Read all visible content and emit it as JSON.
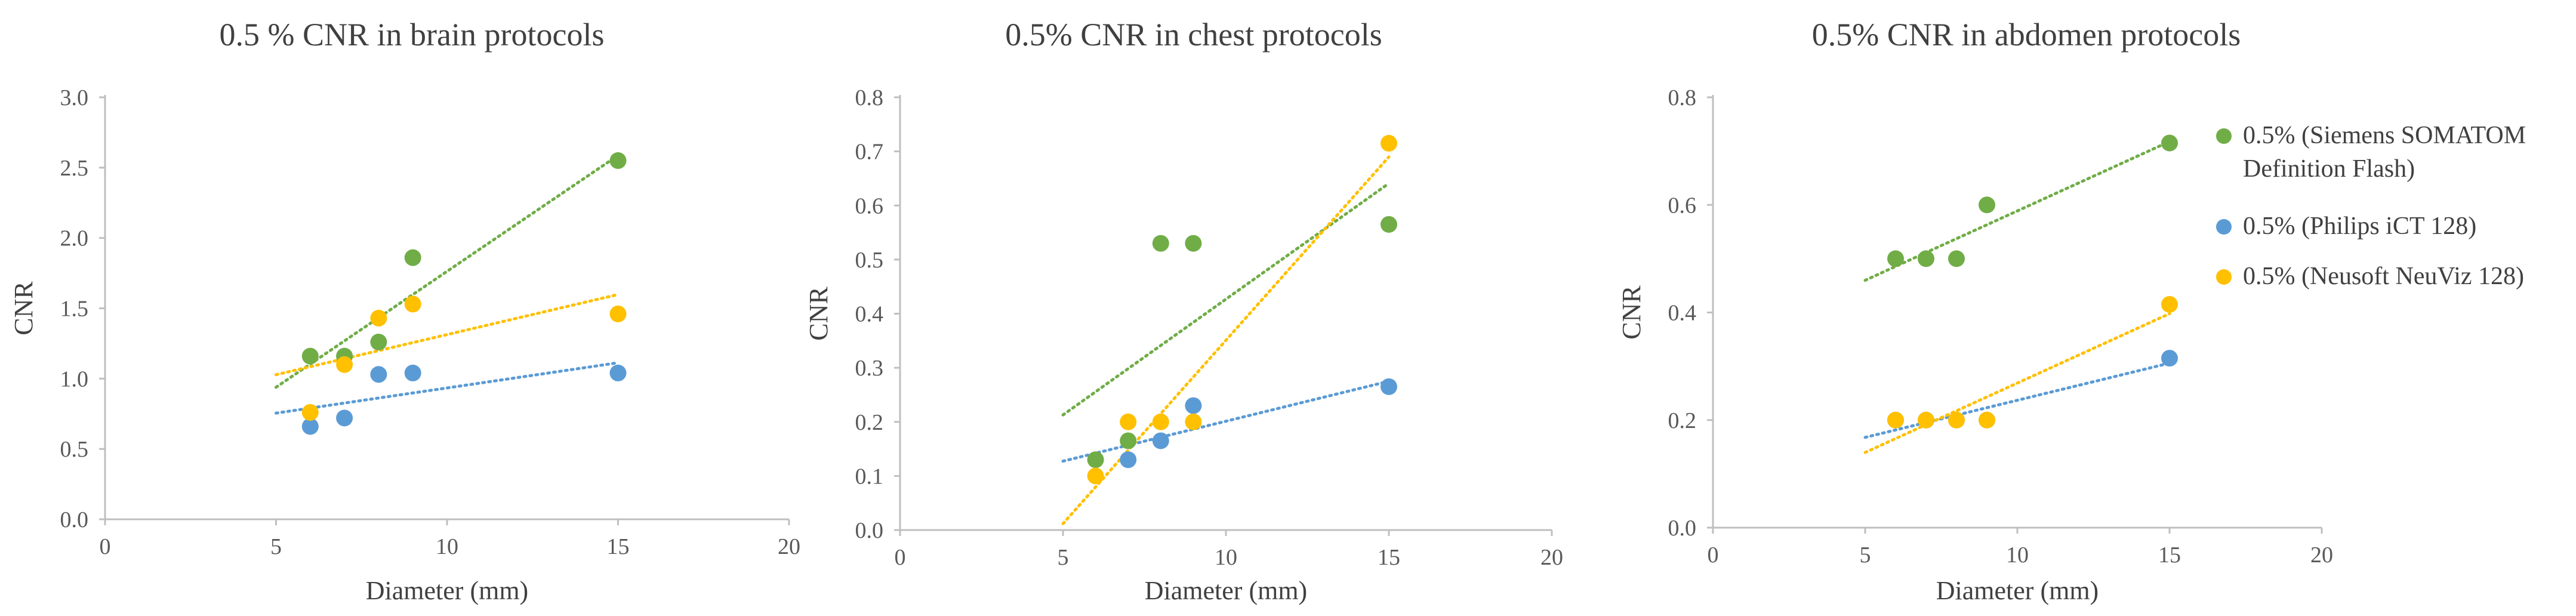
{
  "colors": {
    "series": [
      "#70ad47",
      "#5b9bd5",
      "#ffc000"
    ],
    "axis": "#bfbfbf",
    "text": "#595959"
  },
  "legend": {
    "placement": "right",
    "entries": [
      [
        "0.5% (Siemens SOMATOM",
        "Definition Flash)"
      ],
      [
        "0.5% (Philips iCT 128)"
      ],
      [
        "0.5% (Neusoft NeuViz 128)"
      ]
    ]
  },
  "chart_data": [
    {
      "type": "scatter",
      "title": "0.5 % CNR in brain protocols",
      "xlabel": "Diameter (mm)",
      "ylabel": "CNR",
      "xlim": [
        0,
        20
      ],
      "ylim": [
        0,
        3
      ],
      "xticks": [
        0,
        5,
        10,
        15,
        20
      ],
      "xtick_labels": [
        "0",
        "5",
        "10",
        "15",
        "20"
      ],
      "yticks": [
        0,
        0.5,
        1,
        1.5,
        2,
        2.5,
        3
      ],
      "ytick_labels": [
        "0.0",
        "0.5",
        "1.0",
        "1.5",
        "2.0",
        "2.5",
        "3.0"
      ],
      "series": [
        {
          "name": "0.5% (Siemens SOMATOM Definition Flash)",
          "x": [
            6,
            7,
            8,
            9,
            15
          ],
          "y": [
            1.16,
            1.16,
            1.26,
            1.86,
            2.55
          ]
        },
        {
          "name": "0.5% (Philips iCT 128)",
          "x": [
            6,
            7,
            8,
            9,
            15
          ],
          "y": [
            0.66,
            0.72,
            1.03,
            1.04,
            1.04
          ]
        },
        {
          "name": "0.5% (Neusoft NeuViz 128)",
          "x": [
            6,
            7,
            8,
            9,
            15
          ],
          "y": [
            0.76,
            1.1,
            1.43,
            1.53,
            1.46
          ]
        }
      ]
    },
    {
      "type": "scatter",
      "title": "0.5% CNR in chest protocols",
      "xlabel": "Diameter (mm)",
      "ylabel": "CNR",
      "xlim": [
        0,
        20
      ],
      "ylim": [
        0,
        0.8
      ],
      "xticks": [
        0,
        5,
        10,
        15,
        20
      ],
      "xtick_labels": [
        "0",
        "5",
        "10",
        "15",
        "20"
      ],
      "yticks": [
        0,
        0.1,
        0.2,
        0.3,
        0.4,
        0.5,
        0.6,
        0.7,
        0.8
      ],
      "ytick_labels": [
        "0.0",
        "0.1",
        "0.2",
        "0.3",
        "0.4",
        "0.5",
        "0.6",
        "0.7",
        "0.8"
      ],
      "series": [
        {
          "name": "0.5% (Siemens SOMATOM Definition Flash)",
          "x": [
            6,
            7,
            8,
            9,
            15
          ],
          "y": [
            0.13,
            0.165,
            0.53,
            0.53,
            0.565
          ]
        },
        {
          "name": "0.5% (Philips iCT 128)",
          "x": [
            7,
            8,
            9,
            15
          ],
          "y": [
            0.13,
            0.165,
            0.23,
            0.265
          ]
        },
        {
          "name": "0.5% (Neusoft NeuViz 128)",
          "x": [
            6,
            7,
            8,
            9,
            15
          ],
          "y": [
            0.1,
            0.2,
            0.2,
            0.2,
            0.715
          ]
        }
      ]
    },
    {
      "type": "scatter",
      "title": "0.5% CNR  in abdomen protocols",
      "xlabel": "Diameter (mm)",
      "ylabel": "CNR",
      "xlim": [
        0,
        20
      ],
      "ylim": [
        0,
        0.8
      ],
      "xticks": [
        0,
        5,
        10,
        15,
        20
      ],
      "xtick_labels": [
        "0",
        "5",
        "10",
        "15",
        "20"
      ],
      "yticks": [
        0,
        0.2,
        0.4,
        0.6,
        0.8
      ],
      "ytick_labels": [
        "0.0",
        "0.2",
        "0.4",
        "0.6",
        "0.8"
      ],
      "series": [
        {
          "name": "0.5% (Siemens SOMATOM Definition Flash)",
          "x": [
            6,
            7,
            8,
            9,
            15
          ],
          "y": [
            0.5,
            0.5,
            0.5,
            0.6,
            0.715
          ]
        },
        {
          "name": "0.5% (Philips iCT 128)",
          "x": [
            6,
            7,
            8,
            9,
            15
          ],
          "y": [
            0.2,
            0.2,
            0.2,
            0.2,
            0.315
          ]
        },
        {
          "name": "0.5% (Neusoft NeuViz 128)",
          "x": [
            6,
            7,
            8,
            9,
            15
          ],
          "y": [
            0.2,
            0.2,
            0.2,
            0.2,
            0.415
          ]
        }
      ]
    }
  ]
}
